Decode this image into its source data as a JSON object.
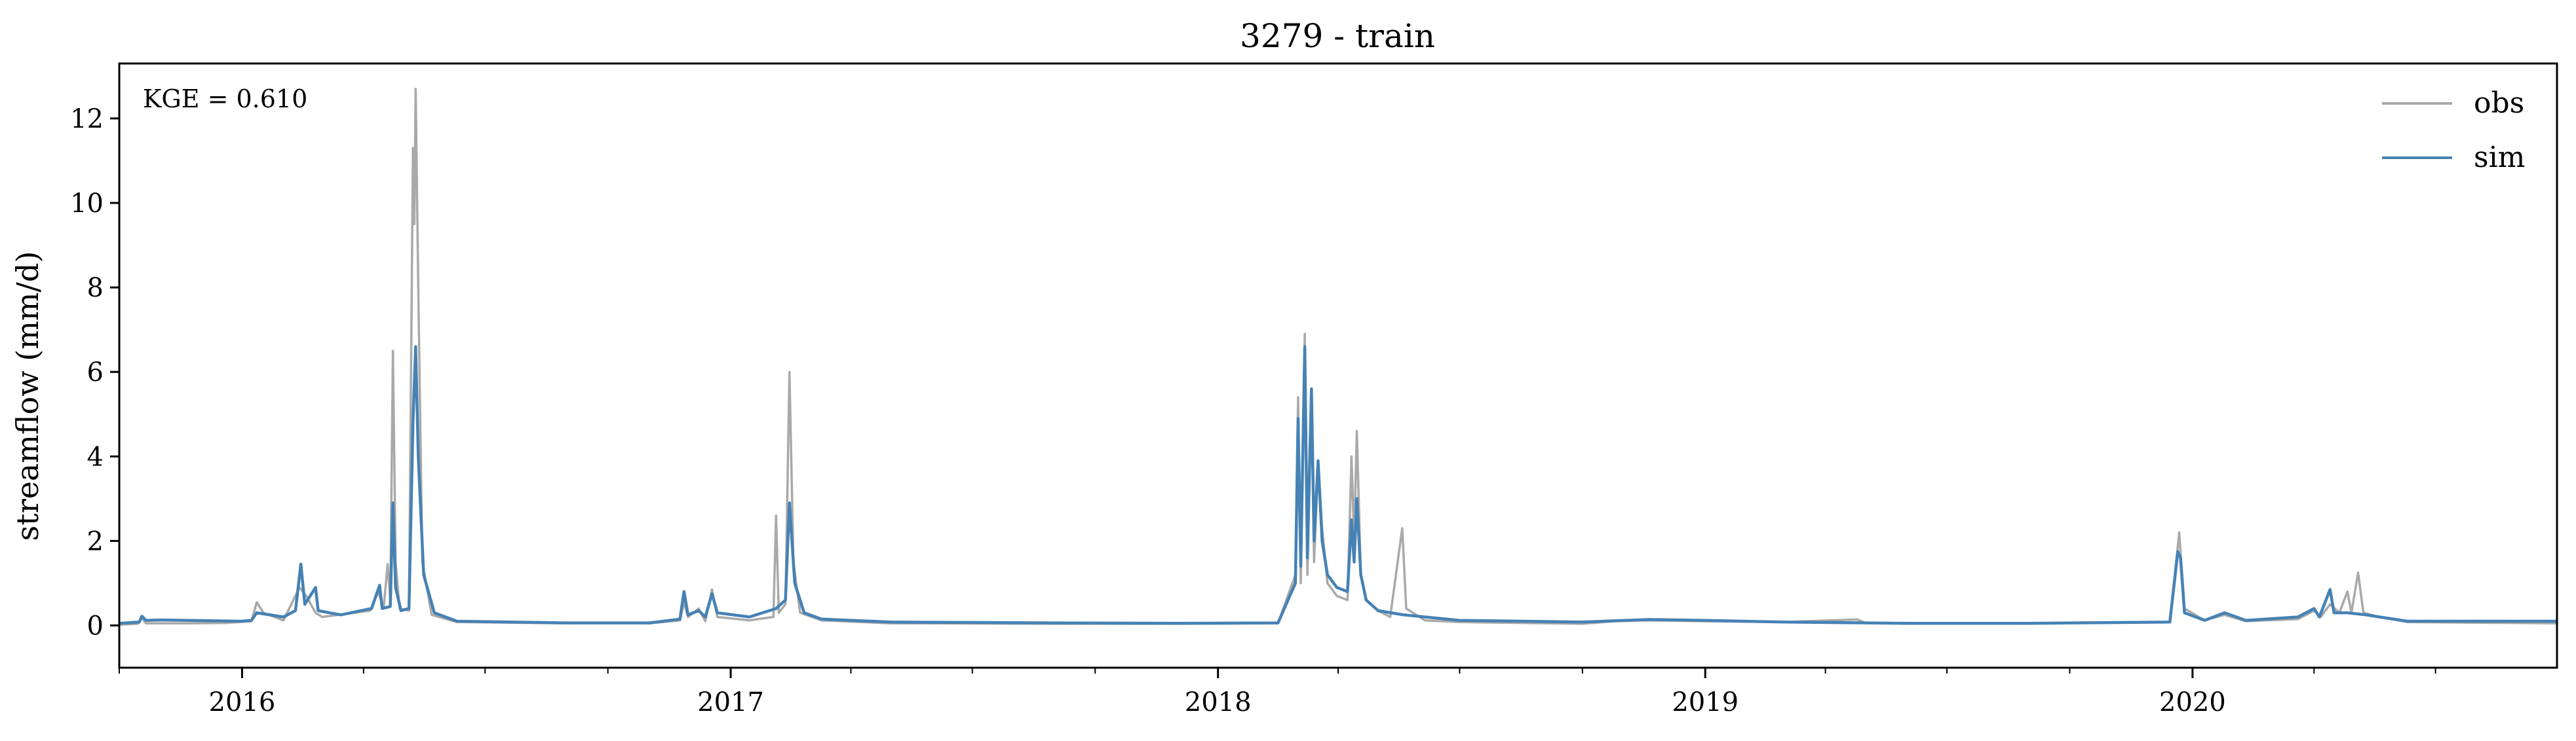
{
  "chart_data": {
    "type": "line",
    "title": "3279 - train",
    "xlabel": "",
    "ylabel": "streamflow (mm/d)",
    "annotation": "KGE = 0.610",
    "xlim": [
      "2015-10-01",
      "2020-09-30"
    ],
    "ylim": [
      -1.0,
      13.3
    ],
    "yticks": [
      0,
      2,
      4,
      6,
      8,
      10,
      12
    ],
    "xticks": [
      {
        "date": "2016-01-01",
        "label": "2016"
      },
      {
        "date": "2017-01-01",
        "label": "2017"
      },
      {
        "date": "2018-01-01",
        "label": "2018"
      },
      {
        "date": "2019-01-01",
        "label": "2019"
      },
      {
        "date": "2020-01-01",
        "label": "2020"
      }
    ],
    "grid": false,
    "legend_position": "top-right",
    "colors": {
      "obs": "#a9a9a9",
      "sim": "#4682b4"
    },
    "series": [
      {
        "name": "obs",
        "points": [
          [
            "2015-10-01",
            0.02
          ],
          [
            "2015-10-15",
            0.04
          ],
          [
            "2015-10-18",
            0.18
          ],
          [
            "2015-10-21",
            0.05
          ],
          [
            "2015-11-20",
            0.05
          ],
          [
            "2015-12-20",
            0.06
          ],
          [
            "2016-01-08",
            0.1
          ],
          [
            "2016-01-12",
            0.55
          ],
          [
            "2016-01-17",
            0.3
          ],
          [
            "2016-02-01",
            0.12
          ],
          [
            "2016-02-13",
            0.9
          ],
          [
            "2016-02-18",
            0.7
          ],
          [
            "2016-02-25",
            0.3
          ],
          [
            "2016-03-01",
            0.2
          ],
          [
            "2016-04-06",
            0.35
          ],
          [
            "2016-04-12",
            0.8
          ],
          [
            "2016-04-16",
            0.4
          ],
          [
            "2016-04-19",
            1.45
          ],
          [
            "2016-04-21",
            0.6
          ],
          [
            "2016-04-23",
            6.5
          ],
          [
            "2016-04-25",
            1.5
          ],
          [
            "2016-04-28",
            0.4
          ],
          [
            "2016-05-05",
            0.35
          ],
          [
            "2016-05-08",
            11.3
          ],
          [
            "2016-05-09",
            9.5
          ],
          [
            "2016-05-10",
            12.7
          ],
          [
            "2016-05-12",
            8.0
          ],
          [
            "2016-05-15",
            1.5
          ],
          [
            "2016-05-22",
            0.25
          ],
          [
            "2016-06-10",
            0.08
          ],
          [
            "2016-09-01",
            0.05
          ],
          [
            "2016-11-01",
            0.05
          ],
          [
            "2016-11-24",
            0.12
          ],
          [
            "2016-11-27",
            0.55
          ],
          [
            "2016-11-30",
            0.2
          ],
          [
            "2016-12-08",
            0.4
          ],
          [
            "2016-12-13",
            0.1
          ],
          [
            "2016-12-18",
            0.85
          ],
          [
            "2016-12-22",
            0.2
          ],
          [
            "2017-01-15",
            0.12
          ],
          [
            "2017-02-02",
            0.2
          ],
          [
            "2017-02-04",
            2.6
          ],
          [
            "2017-02-06",
            0.3
          ],
          [
            "2017-02-11",
            0.5
          ],
          [
            "2017-02-14",
            6.0
          ],
          [
            "2017-02-17",
            1.5
          ],
          [
            "2017-02-22",
            0.3
          ],
          [
            "2017-03-10",
            0.12
          ],
          [
            "2017-05-01",
            0.05
          ],
          [
            "2017-09-01",
            0.04
          ],
          [
            "2017-12-01",
            0.04
          ],
          [
            "2018-02-15",
            0.05
          ],
          [
            "2018-02-28",
            1.2
          ],
          [
            "2018-03-02",
            5.4
          ],
          [
            "2018-03-04",
            1.0
          ],
          [
            "2018-03-07",
            6.9
          ],
          [
            "2018-03-09",
            1.2
          ],
          [
            "2018-03-12",
            5.4
          ],
          [
            "2018-03-14",
            1.5
          ],
          [
            "2018-03-17",
            3.8
          ],
          [
            "2018-03-20",
            2.3
          ],
          [
            "2018-03-24",
            1.0
          ],
          [
            "2018-03-31",
            0.7
          ],
          [
            "2018-04-08",
            0.6
          ],
          [
            "2018-04-11",
            4.0
          ],
          [
            "2018-04-13",
            2.0
          ],
          [
            "2018-04-15",
            4.6
          ],
          [
            "2018-04-18",
            1.2
          ],
          [
            "2018-04-22",
            0.6
          ],
          [
            "2018-05-01",
            0.35
          ],
          [
            "2018-05-10",
            0.2
          ],
          [
            "2018-05-19",
            2.3
          ],
          [
            "2018-05-22",
            0.4
          ],
          [
            "2018-06-05",
            0.12
          ],
          [
            "2018-07-01",
            0.08
          ],
          [
            "2018-10-01",
            0.04
          ],
          [
            "2018-10-25",
            0.1
          ],
          [
            "2018-11-20",
            0.12
          ],
          [
            "2019-01-01",
            0.1
          ],
          [
            "2019-03-01",
            0.08
          ],
          [
            "2019-04-25",
            0.14
          ],
          [
            "2019-05-01",
            0.06
          ],
          [
            "2019-09-01",
            0.05
          ],
          [
            "2019-12-15",
            0.08
          ],
          [
            "2019-12-22",
            2.2
          ],
          [
            "2019-12-26",
            0.4
          ],
          [
            "2020-01-10",
            0.12
          ],
          [
            "2020-01-25",
            0.25
          ],
          [
            "2020-02-10",
            0.1
          ],
          [
            "2020-03-20",
            0.15
          ],
          [
            "2020-04-01",
            0.35
          ],
          [
            "2020-04-06",
            0.2
          ],
          [
            "2020-04-13",
            0.5
          ],
          [
            "2020-04-20",
            0.3
          ],
          [
            "2020-04-26",
            0.8
          ],
          [
            "2020-04-29",
            0.3
          ],
          [
            "2020-05-04",
            1.25
          ],
          [
            "2020-05-08",
            0.3
          ],
          [
            "2020-05-20",
            0.2
          ],
          [
            "2020-06-10",
            0.08
          ],
          [
            "2020-09-30",
            0.05
          ]
        ]
      },
      {
        "name": "sim",
        "points": [
          [
            "2015-10-01",
            0.05
          ],
          [
            "2015-10-16",
            0.08
          ],
          [
            "2015-10-18",
            0.22
          ],
          [
            "2015-10-21",
            0.12
          ],
          [
            "2015-11-01",
            0.13
          ],
          [
            "2015-12-31",
            0.1
          ],
          [
            "2016-01-08",
            0.12
          ],
          [
            "2016-01-12",
            0.3
          ],
          [
            "2016-02-01",
            0.2
          ],
          [
            "2016-02-10",
            0.35
          ],
          [
            "2016-02-14",
            1.45
          ],
          [
            "2016-02-17",
            0.5
          ],
          [
            "2016-02-25",
            0.9
          ],
          [
            "2016-02-27",
            0.35
          ],
          [
            "2016-03-15",
            0.25
          ],
          [
            "2016-04-07",
            0.4
          ],
          [
            "2016-04-13",
            0.95
          ],
          [
            "2016-04-15",
            0.4
          ],
          [
            "2016-04-21",
            0.45
          ],
          [
            "2016-04-23",
            2.9
          ],
          [
            "2016-04-25",
            0.9
          ],
          [
            "2016-04-29",
            0.35
          ],
          [
            "2016-05-05",
            0.4
          ],
          [
            "2016-05-08",
            4.8
          ],
          [
            "2016-05-10",
            6.6
          ],
          [
            "2016-05-12",
            4.0
          ],
          [
            "2016-05-16",
            1.2
          ],
          [
            "2016-05-24",
            0.3
          ],
          [
            "2016-06-10",
            0.1
          ],
          [
            "2016-09-01",
            0.06
          ],
          [
            "2016-11-01",
            0.06
          ],
          [
            "2016-11-24",
            0.15
          ],
          [
            "2016-11-27",
            0.8
          ],
          [
            "2016-11-30",
            0.25
          ],
          [
            "2016-12-08",
            0.35
          ],
          [
            "2016-12-13",
            0.2
          ],
          [
            "2016-12-18",
            0.75
          ],
          [
            "2016-12-22",
            0.3
          ],
          [
            "2017-01-15",
            0.2
          ],
          [
            "2017-02-04",
            0.4
          ],
          [
            "2017-02-11",
            0.6
          ],
          [
            "2017-02-14",
            2.9
          ],
          [
            "2017-02-18",
            1.0
          ],
          [
            "2017-02-25",
            0.3
          ],
          [
            "2017-03-10",
            0.15
          ],
          [
            "2017-05-01",
            0.08
          ],
          [
            "2017-09-01",
            0.06
          ],
          [
            "2017-12-01",
            0.05
          ],
          [
            "2018-02-15",
            0.06
          ],
          [
            "2018-02-28",
            1.0
          ],
          [
            "2018-03-02",
            4.9
          ],
          [
            "2018-03-04",
            1.4
          ],
          [
            "2018-03-07",
            6.6
          ],
          [
            "2018-03-09",
            1.6
          ],
          [
            "2018-03-12",
            5.6
          ],
          [
            "2018-03-14",
            2.0
          ],
          [
            "2018-03-17",
            3.9
          ],
          [
            "2018-03-20",
            2.0
          ],
          [
            "2018-03-24",
            1.2
          ],
          [
            "2018-03-31",
            0.9
          ],
          [
            "2018-04-08",
            0.8
          ],
          [
            "2018-04-11",
            2.5
          ],
          [
            "2018-04-13",
            1.5
          ],
          [
            "2018-04-15",
            3.0
          ],
          [
            "2018-04-18",
            1.2
          ],
          [
            "2018-04-22",
            0.6
          ],
          [
            "2018-05-01",
            0.35
          ],
          [
            "2018-05-20",
            0.25
          ],
          [
            "2018-06-05",
            0.2
          ],
          [
            "2018-07-01",
            0.12
          ],
          [
            "2018-10-01",
            0.08
          ],
          [
            "2018-11-20",
            0.14
          ],
          [
            "2019-01-01",
            0.12
          ],
          [
            "2019-03-01",
            0.08
          ],
          [
            "2019-06-01",
            0.05
          ],
          [
            "2019-09-01",
            0.05
          ],
          [
            "2019-12-15",
            0.08
          ],
          [
            "2019-12-21",
            1.75
          ],
          [
            "2019-12-23",
            1.6
          ],
          [
            "2019-12-26",
            0.3
          ],
          [
            "2020-01-10",
            0.12
          ],
          [
            "2020-01-25",
            0.3
          ],
          [
            "2020-02-10",
            0.12
          ],
          [
            "2020-03-20",
            0.2
          ],
          [
            "2020-04-01",
            0.4
          ],
          [
            "2020-04-05",
            0.2
          ],
          [
            "2020-04-13",
            0.85
          ],
          [
            "2020-04-16",
            0.3
          ],
          [
            "2020-04-26",
            0.3
          ],
          [
            "2020-05-10",
            0.25
          ],
          [
            "2020-05-20",
            0.2
          ],
          [
            "2020-06-10",
            0.1
          ],
          [
            "2020-09-30",
            0.1
          ]
        ]
      }
    ]
  }
}
